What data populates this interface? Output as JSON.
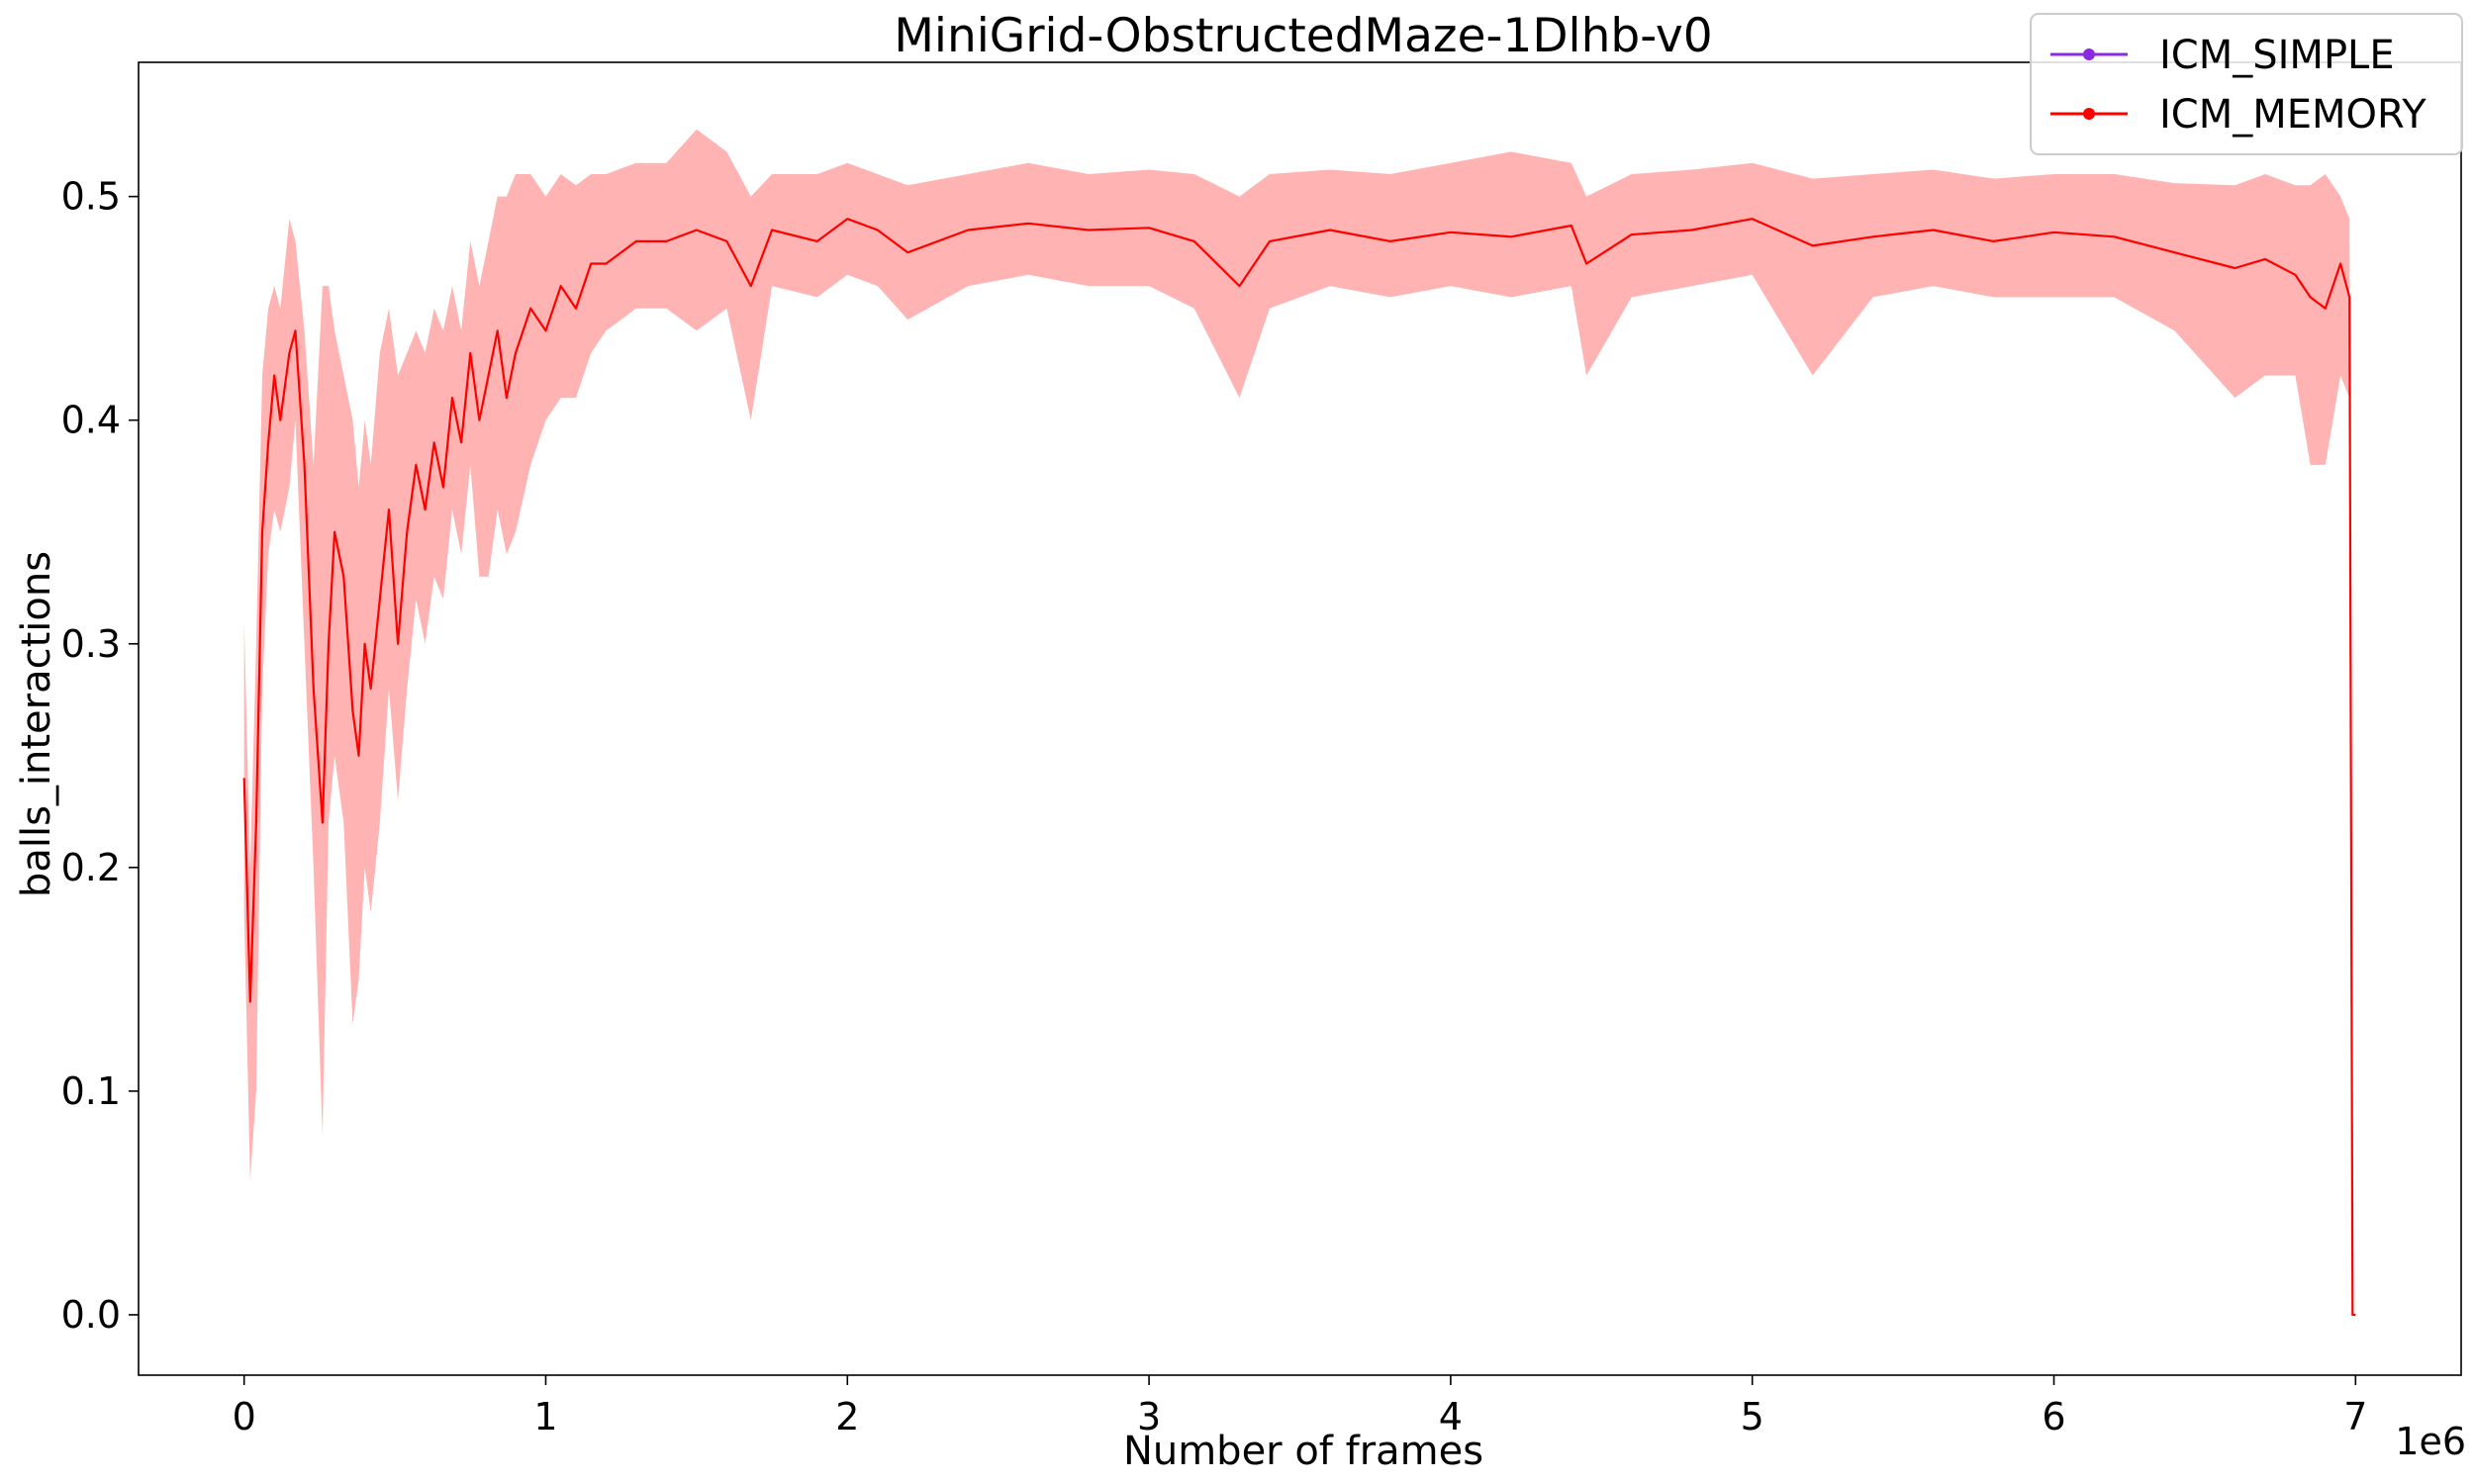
{
  "chart_data": {
    "type": "line",
    "title": "MiniGrid-ObstructedMaze-1Dlhb-v0",
    "xlabel": "Number of frames",
    "ylabel": "balls_interactions",
    "x_offset_text": "1e6",
    "xlim": [
      -350000,
      7350000
    ],
    "ylim": [
      -0.027,
      0.56
    ],
    "x_ticks": [
      0,
      1,
      2,
      3,
      4,
      5,
      6,
      7
    ],
    "y_ticks": [
      0.0,
      0.1,
      0.2,
      0.3,
      0.4,
      0.5
    ],
    "y_tick_labels": [
      "0.0",
      "0.1",
      "0.2",
      "0.3",
      "0.4",
      "0.5"
    ],
    "grid": false,
    "legend_position": "top-right",
    "series": [
      {
        "name": "ICM_SIMPLE",
        "color": "#8a2be2",
        "x": [],
        "y": []
      },
      {
        "name": "ICM_MEMORY",
        "color": "#ff0000",
        "band_color": "#ff9a9a",
        "x": [
          0,
          20000,
          40000,
          60000,
          80000,
          100000,
          120000,
          150000,
          170000,
          200000,
          230000,
          260000,
          280000,
          300000,
          330000,
          360000,
          380000,
          400000,
          420000,
          450000,
          480000,
          510000,
          540000,
          570000,
          600000,
          630000,
          660000,
          690000,
          720000,
          750000,
          780000,
          810000,
          840000,
          870000,
          900000,
          950000,
          1000000,
          1050000,
          1100000,
          1150000,
          1200000,
          1300000,
          1400000,
          1500000,
          1600000,
          1680000,
          1750000,
          1900000,
          2000000,
          2100000,
          2200000,
          2400000,
          2600000,
          2800000,
          3000000,
          3150000,
          3300000,
          3400000,
          3600000,
          3800000,
          4000000,
          4200000,
          4400000,
          4450000,
          4600000,
          4800000,
          5000000,
          5200000,
          5400000,
          5600000,
          5800000,
          6000000,
          6200000,
          6400000,
          6600000,
          6700000,
          6800000,
          6850000,
          6900000,
          6950000,
          6980000,
          6990000,
          7000000
        ],
        "y": [
          0.24,
          0.14,
          0.22,
          0.35,
          0.39,
          0.42,
          0.4,
          0.43,
          0.44,
          0.38,
          0.28,
          0.22,
          0.3,
          0.35,
          0.33,
          0.27,
          0.25,
          0.3,
          0.28,
          0.32,
          0.36,
          0.3,
          0.35,
          0.38,
          0.36,
          0.39,
          0.37,
          0.41,
          0.39,
          0.43,
          0.4,
          0.42,
          0.44,
          0.41,
          0.43,
          0.45,
          0.44,
          0.46,
          0.45,
          0.47,
          0.47,
          0.48,
          0.48,
          0.485,
          0.48,
          0.46,
          0.485,
          0.48,
          0.49,
          0.485,
          0.475,
          0.485,
          0.488,
          0.485,
          0.486,
          0.48,
          0.46,
          0.48,
          0.485,
          0.48,
          0.484,
          0.482,
          0.487,
          0.47,
          0.483,
          0.485,
          0.49,
          0.478,
          0.482,
          0.485,
          0.48,
          0.484,
          0.482,
          0.475,
          0.468,
          0.472,
          0.465,
          0.455,
          0.45,
          0.47,
          0.455,
          0.0,
          0.0
        ],
        "y_upper": [
          0.31,
          0.2,
          0.3,
          0.42,
          0.45,
          0.46,
          0.45,
          0.49,
          0.48,
          0.44,
          0.38,
          0.46,
          0.46,
          0.44,
          0.42,
          0.4,
          0.37,
          0.4,
          0.38,
          0.43,
          0.45,
          0.42,
          0.43,
          0.44,
          0.43,
          0.45,
          0.44,
          0.46,
          0.44,
          0.48,
          0.46,
          0.48,
          0.5,
          0.5,
          0.51,
          0.51,
          0.5,
          0.51,
          0.505,
          0.51,
          0.51,
          0.515,
          0.515,
          0.53,
          0.52,
          0.5,
          0.51,
          0.51,
          0.515,
          0.51,
          0.505,
          0.51,
          0.515,
          0.51,
          0.512,
          0.51,
          0.5,
          0.51,
          0.512,
          0.51,
          0.515,
          0.52,
          0.515,
          0.5,
          0.51,
          0.512,
          0.515,
          0.508,
          0.51,
          0.512,
          0.508,
          0.51,
          0.51,
          0.506,
          0.505,
          0.51,
          0.505,
          0.505,
          0.51,
          0.5,
          0.49,
          0.0,
          0.0
        ],
        "y_lower": [
          0.18,
          0.06,
          0.1,
          0.28,
          0.34,
          0.36,
          0.35,
          0.37,
          0.4,
          0.3,
          0.2,
          0.08,
          0.22,
          0.25,
          0.22,
          0.13,
          0.15,
          0.2,
          0.18,
          0.22,
          0.28,
          0.23,
          0.28,
          0.32,
          0.3,
          0.33,
          0.32,
          0.36,
          0.34,
          0.38,
          0.33,
          0.33,
          0.36,
          0.34,
          0.35,
          0.38,
          0.4,
          0.41,
          0.41,
          0.43,
          0.44,
          0.45,
          0.45,
          0.44,
          0.45,
          0.4,
          0.46,
          0.455,
          0.465,
          0.46,
          0.445,
          0.46,
          0.465,
          0.46,
          0.46,
          0.45,
          0.41,
          0.45,
          0.46,
          0.455,
          0.46,
          0.455,
          0.46,
          0.42,
          0.455,
          0.46,
          0.465,
          0.42,
          0.455,
          0.46,
          0.455,
          0.455,
          0.455,
          0.44,
          0.41,
          0.42,
          0.42,
          0.38,
          0.38,
          0.42,
          0.41,
          0.0,
          0.0
        ]
      }
    ]
  }
}
